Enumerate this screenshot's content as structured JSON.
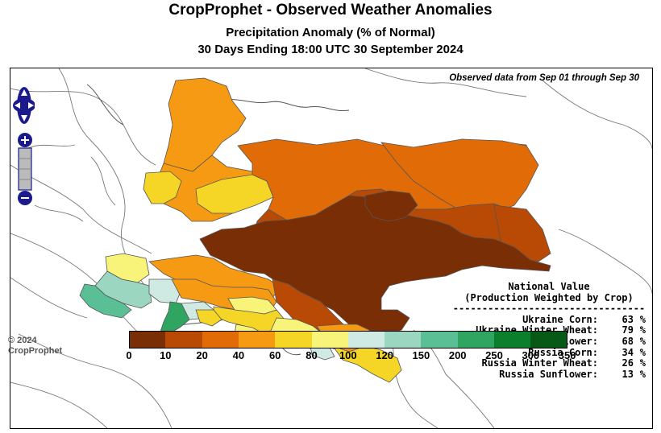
{
  "header": {
    "title": "CropProphet - Observed Weather Anomalies",
    "subtitle": "Precipitation Anomaly (% of Normal)",
    "period": "30 Days Ending 18:00 UTC 30 September 2024"
  },
  "map": {
    "observed_note": "Observed data from Sep 01 through Sep 30",
    "controls": {
      "pan": "pan-control",
      "zoom_in": "+",
      "zoom_out": "−"
    }
  },
  "national": {
    "heading_1": "National Value",
    "heading_2": "(Production Weighted by Crop)",
    "separator": "---------------------------------",
    "rows": [
      {
        "label": "Ukraine Corn:",
        "value": "63",
        "unit": "%"
      },
      {
        "label": "Ukraine Winter Wheat:",
        "value": "79",
        "unit": "%"
      },
      {
        "label": "Ukraine Sunflower:",
        "value": "68",
        "unit": "%"
      },
      {
        "label": "Russia Corn:",
        "value": "34",
        "unit": "%"
      },
      {
        "label": "Russia Winter Wheat:",
        "value": "26",
        "unit": "%"
      },
      {
        "label": "Russia Sunflower:",
        "value": "13",
        "unit": "%"
      }
    ]
  },
  "legend": {
    "ticks": [
      "0",
      "10",
      "20",
      "40",
      "60",
      "80",
      "100",
      "120",
      "150",
      "200",
      "250",
      "300",
      "350"
    ],
    "colors": [
      "#7a2e06",
      "#b84a05",
      "#e06b07",
      "#f59a12",
      "#f5d525",
      "#f8f47a",
      "#cfe9e3",
      "#9bd6c0",
      "#5bbf96",
      "#2fa561",
      "#0c7f2c",
      "#075a16"
    ]
  },
  "colors": {
    "darkbrown": "#7a2e06",
    "brown": "#b84a05",
    "dorange": "#e06b07",
    "orange": "#f59a12",
    "yellow": "#f5d525",
    "lyellow": "#f8f47a",
    "paleteal": "#cfe9e3",
    "lteal": "#9bd6c0",
    "teal": "#5bbf96",
    "green": "#2fa561"
  },
  "copyright": {
    "line1": "© 2024",
    "line2": "CropProphet"
  }
}
